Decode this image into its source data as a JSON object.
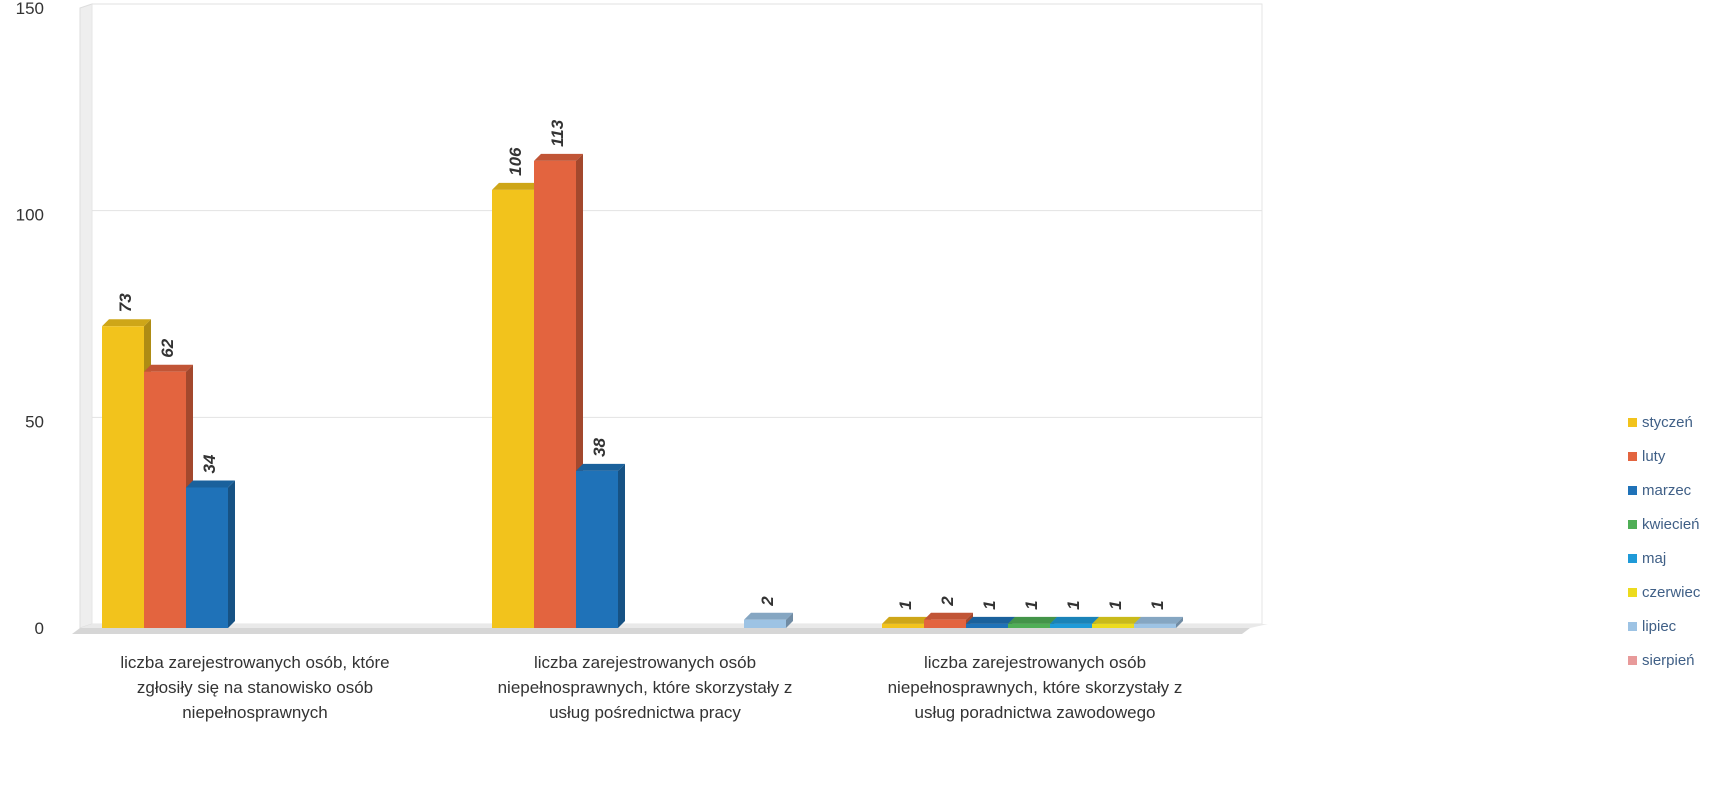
{
  "chart_data": {
    "type": "bar",
    "categories": [
      [
        "liczba zarejestrowanych osób, które",
        "zgłosiły się na stanowisko osób",
        "niepełnosprawnych"
      ],
      [
        "liczba zarejestrowanych osób",
        "niepełnosprawnych, które skorzystały z",
        "usług pośrednictwa pracy"
      ],
      [
        "liczba zarejestrowanych osób",
        "niepełnosprawnych, które skorzystały z",
        "usług poradnictwa zawodowego"
      ]
    ],
    "series": [
      {
        "name": "styczeń",
        "color": "#f2c31c",
        "values": [
          73,
          106,
          1
        ]
      },
      {
        "name": "luty",
        "color": "#e3643f",
        "values": [
          62,
          113,
          2
        ]
      },
      {
        "name": "marzec",
        "color": "#1f72b8",
        "values": [
          34,
          38,
          1
        ]
      },
      {
        "name": "kwiecień",
        "color": "#4fae56",
        "values": [
          null,
          null,
          1
        ]
      },
      {
        "name": "maj",
        "color": "#1f9ad8",
        "values": [
          null,
          null,
          1
        ]
      },
      {
        "name": "czerwiec",
        "color": "#ecdb1e",
        "values": [
          null,
          null,
          1
        ]
      },
      {
        "name": "lipiec",
        "color": "#9dc3e4",
        "values": [
          null,
          2,
          1
        ]
      },
      {
        "name": "sierpień",
        "color": "#e89a9a",
        "values": [
          null,
          null,
          null
        ]
      }
    ],
    "yticks": [
      "0",
      "50",
      "100",
      "150"
    ],
    "ylim": [
      0,
      150
    ],
    "grid": true,
    "legend_position": "right",
    "three_d": true
  }
}
